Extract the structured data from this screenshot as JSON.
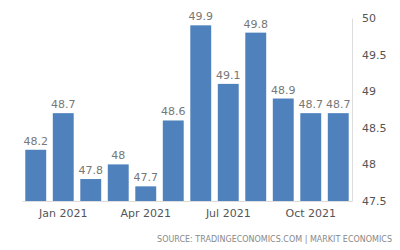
{
  "chart_data": {
    "type": "bar",
    "categories": [
      null,
      "Jan 2021",
      null,
      null,
      "Apr 2021",
      null,
      null,
      "Jul 2021",
      null,
      null,
      "Oct 2021",
      null
    ],
    "values": [
      48.2,
      48.7,
      47.8,
      48,
      47.7,
      48.6,
      49.9,
      49.1,
      49.8,
      48.9,
      48.7,
      48.7
    ],
    "color": "#4f81bd",
    "ylim": [
      47.5,
      50
    ],
    "yticks": [
      47.5,
      48,
      48.5,
      49,
      49.5,
      50
    ],
    "grid": false,
    "data_labels": true,
    "source": "SOURCE: TRADINGECONOMICS.COM | MARKIT ECONOMICS"
  }
}
